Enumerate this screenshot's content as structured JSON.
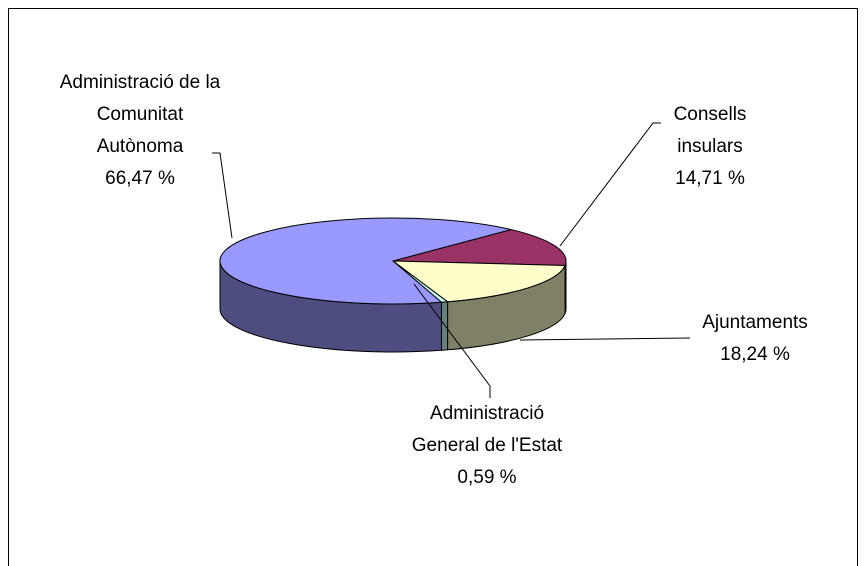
{
  "chart_data": {
    "type": "pie3d",
    "categories": [
      "Consells insulars",
      "Ajuntaments",
      "Administració General de l'Estat",
      "Administració de la Comunitat Autònoma"
    ],
    "values": [
      14.71,
      18.24,
      0.59,
      66.47
    ],
    "value_labels": [
      "14,71 %",
      "18,24 %",
      "0,59 %",
      "66,47 %"
    ],
    "colors": [
      "#993366",
      "#ffffcc",
      "#ccffff",
      "#9999ff"
    ]
  }
}
